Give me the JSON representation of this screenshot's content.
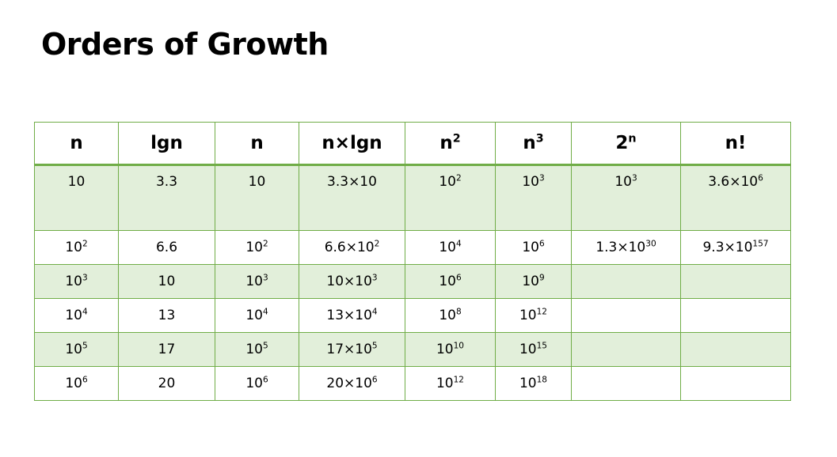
{
  "title": "Orders of Growth",
  "colors": {
    "border": "#70ad47",
    "band": "#e2efda"
  },
  "table": {
    "columns": [
      {
        "base": "n",
        "sup": ""
      },
      {
        "base": "lgn",
        "sup": ""
      },
      {
        "base": "n",
        "sup": ""
      },
      {
        "base": "n×lgn",
        "sup": ""
      },
      {
        "base": "n",
        "sup": "2"
      },
      {
        "base": "n",
        "sup": "3"
      },
      {
        "base": "2",
        "sup": "n"
      },
      {
        "base": "n!",
        "sup": ""
      }
    ],
    "rows": [
      [
        {
          "base": "10",
          "sup": ""
        },
        {
          "base": "3.3",
          "sup": ""
        },
        {
          "base": "10",
          "sup": ""
        },
        {
          "base": "3.3×10",
          "sup": ""
        },
        {
          "base": "10",
          "sup": "2"
        },
        {
          "base": "10",
          "sup": "3"
        },
        {
          "base": "10",
          "sup": "3"
        },
        {
          "base": "3.6×10",
          "sup": "6"
        }
      ],
      [
        {
          "base": "10",
          "sup": "2"
        },
        {
          "base": "6.6",
          "sup": ""
        },
        {
          "base": "10",
          "sup": "2"
        },
        {
          "base": "6.6×10",
          "sup": "2"
        },
        {
          "base": "10",
          "sup": "4"
        },
        {
          "base": "10",
          "sup": "6"
        },
        {
          "base": "1.3×10",
          "sup": "30"
        },
        {
          "base": "9.3×10",
          "sup": "157"
        }
      ],
      [
        {
          "base": "10",
          "sup": "3"
        },
        {
          "base": "10",
          "sup": ""
        },
        {
          "base": "10",
          "sup": "3"
        },
        {
          "base": "10×10",
          "sup": "3"
        },
        {
          "base": "10",
          "sup": "6"
        },
        {
          "base": "10",
          "sup": "9"
        },
        {
          "base": "",
          "sup": ""
        },
        {
          "base": "",
          "sup": ""
        }
      ],
      [
        {
          "base": "10",
          "sup": "4"
        },
        {
          "base": "13",
          "sup": ""
        },
        {
          "base": "10",
          "sup": "4"
        },
        {
          "base": "13×10",
          "sup": "4"
        },
        {
          "base": "10",
          "sup": "8"
        },
        {
          "base": "10",
          "sup": "12"
        },
        {
          "base": "",
          "sup": ""
        },
        {
          "base": "",
          "sup": ""
        }
      ],
      [
        {
          "base": "10",
          "sup": "5"
        },
        {
          "base": "17",
          "sup": ""
        },
        {
          "base": "10",
          "sup": "5"
        },
        {
          "base": "17×10",
          "sup": "5"
        },
        {
          "base": "10",
          "sup": "10"
        },
        {
          "base": "10",
          "sup": "15"
        },
        {
          "base": "",
          "sup": ""
        },
        {
          "base": "",
          "sup": ""
        }
      ],
      [
        {
          "base": "10",
          "sup": "6"
        },
        {
          "base": "20",
          "sup": ""
        },
        {
          "base": "10",
          "sup": "6"
        },
        {
          "base": "20×10",
          "sup": "6"
        },
        {
          "base": "10",
          "sup": "12"
        },
        {
          "base": "10",
          "sup": "18"
        },
        {
          "base": "",
          "sup": ""
        },
        {
          "base": "",
          "sup": ""
        }
      ]
    ]
  }
}
